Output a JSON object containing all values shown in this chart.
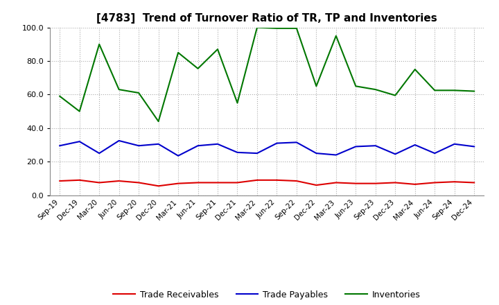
{
  "title": "[4783]  Trend of Turnover Ratio of TR, TP and Inventories",
  "x_labels": [
    "Sep-19",
    "Dec-19",
    "Mar-20",
    "Jun-20",
    "Sep-20",
    "Dec-20",
    "Mar-21",
    "Jun-21",
    "Sep-21",
    "Dec-21",
    "Mar-22",
    "Jun-22",
    "Sep-22",
    "Dec-22",
    "Mar-23",
    "Jun-23",
    "Sep-23",
    "Dec-23",
    "Mar-24",
    "Jun-24",
    "Sep-24",
    "Dec-24"
  ],
  "trade_receivables": [
    8.5,
    9.0,
    7.5,
    8.5,
    7.5,
    5.5,
    7.0,
    7.5,
    7.5,
    7.5,
    9.0,
    9.0,
    8.5,
    6.0,
    7.5,
    7.0,
    7.0,
    7.5,
    6.5,
    7.5,
    8.0,
    7.5
  ],
  "trade_payables": [
    29.5,
    32.0,
    25.0,
    32.5,
    29.5,
    30.5,
    23.5,
    29.5,
    30.5,
    25.5,
    25.0,
    31.0,
    31.5,
    25.0,
    24.0,
    29.0,
    29.5,
    24.5,
    30.0,
    25.0,
    30.5,
    29.0
  ],
  "inventories": [
    59.0,
    50.0,
    90.0,
    63.0,
    61.0,
    44.0,
    85.0,
    75.5,
    87.0,
    55.0,
    100.0,
    99.5,
    99.5,
    65.0,
    95.0,
    65.0,
    63.0,
    59.5,
    75.0,
    62.5,
    62.5,
    62.0
  ],
  "tr_color": "#dd0000",
  "tp_color": "#0000cc",
  "inv_color": "#007700",
  "ylim": [
    0.0,
    100.0
  ],
  "yticks": [
    0.0,
    20.0,
    40.0,
    60.0,
    80.0,
    100.0
  ],
  "legend_labels": [
    "Trade Receivables",
    "Trade Payables",
    "Inventories"
  ],
  "background_color": "#ffffff",
  "plot_bg_color": "#ffffff"
}
